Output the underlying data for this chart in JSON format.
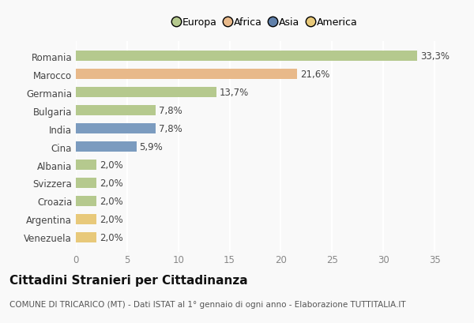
{
  "countries": [
    "Romania",
    "Marocco",
    "Germania",
    "Bulgaria",
    "India",
    "Cina",
    "Albania",
    "Svizzera",
    "Croazia",
    "Argentina",
    "Venezuela"
  ],
  "values": [
    33.3,
    21.6,
    13.7,
    7.8,
    7.8,
    5.9,
    2.0,
    2.0,
    2.0,
    2.0,
    2.0
  ],
  "labels": [
    "33,3%",
    "21,6%",
    "13,7%",
    "7,8%",
    "7,8%",
    "5,9%",
    "2,0%",
    "2,0%",
    "2,0%",
    "2,0%",
    "2,0%"
  ],
  "colors": [
    "#b5c98e",
    "#e8b98a",
    "#b5c98e",
    "#b5c98e",
    "#7b9bbf",
    "#7b9bbf",
    "#b5c98e",
    "#b5c98e",
    "#b5c98e",
    "#e8c97a",
    "#e8c97a"
  ],
  "legend_labels": [
    "Europa",
    "Africa",
    "Asia",
    "America"
  ],
  "legend_colors": [
    "#b5c98e",
    "#e8b98a",
    "#6080aa",
    "#e8c97a"
  ],
  "title": "Cittadini Stranieri per Cittadinanza",
  "subtitle": "COMUNE DI TRICARICO (MT) - Dati ISTAT al 1° gennaio di ogni anno - Elaborazione TUTTITALIA.IT",
  "xlim": [
    0,
    37
  ],
  "xticks": [
    0,
    5,
    10,
    15,
    20,
    25,
    30,
    35
  ],
  "bg_color": "#f9f9f9",
  "plot_bg_color": "#f9f9f9",
  "bar_height": 0.55,
  "label_fontsize": 8.5,
  "ytick_fontsize": 8.5,
  "xtick_fontsize": 8.5,
  "title_fontsize": 11,
  "subtitle_fontsize": 7.5,
  "grid_color": "#ffffff"
}
